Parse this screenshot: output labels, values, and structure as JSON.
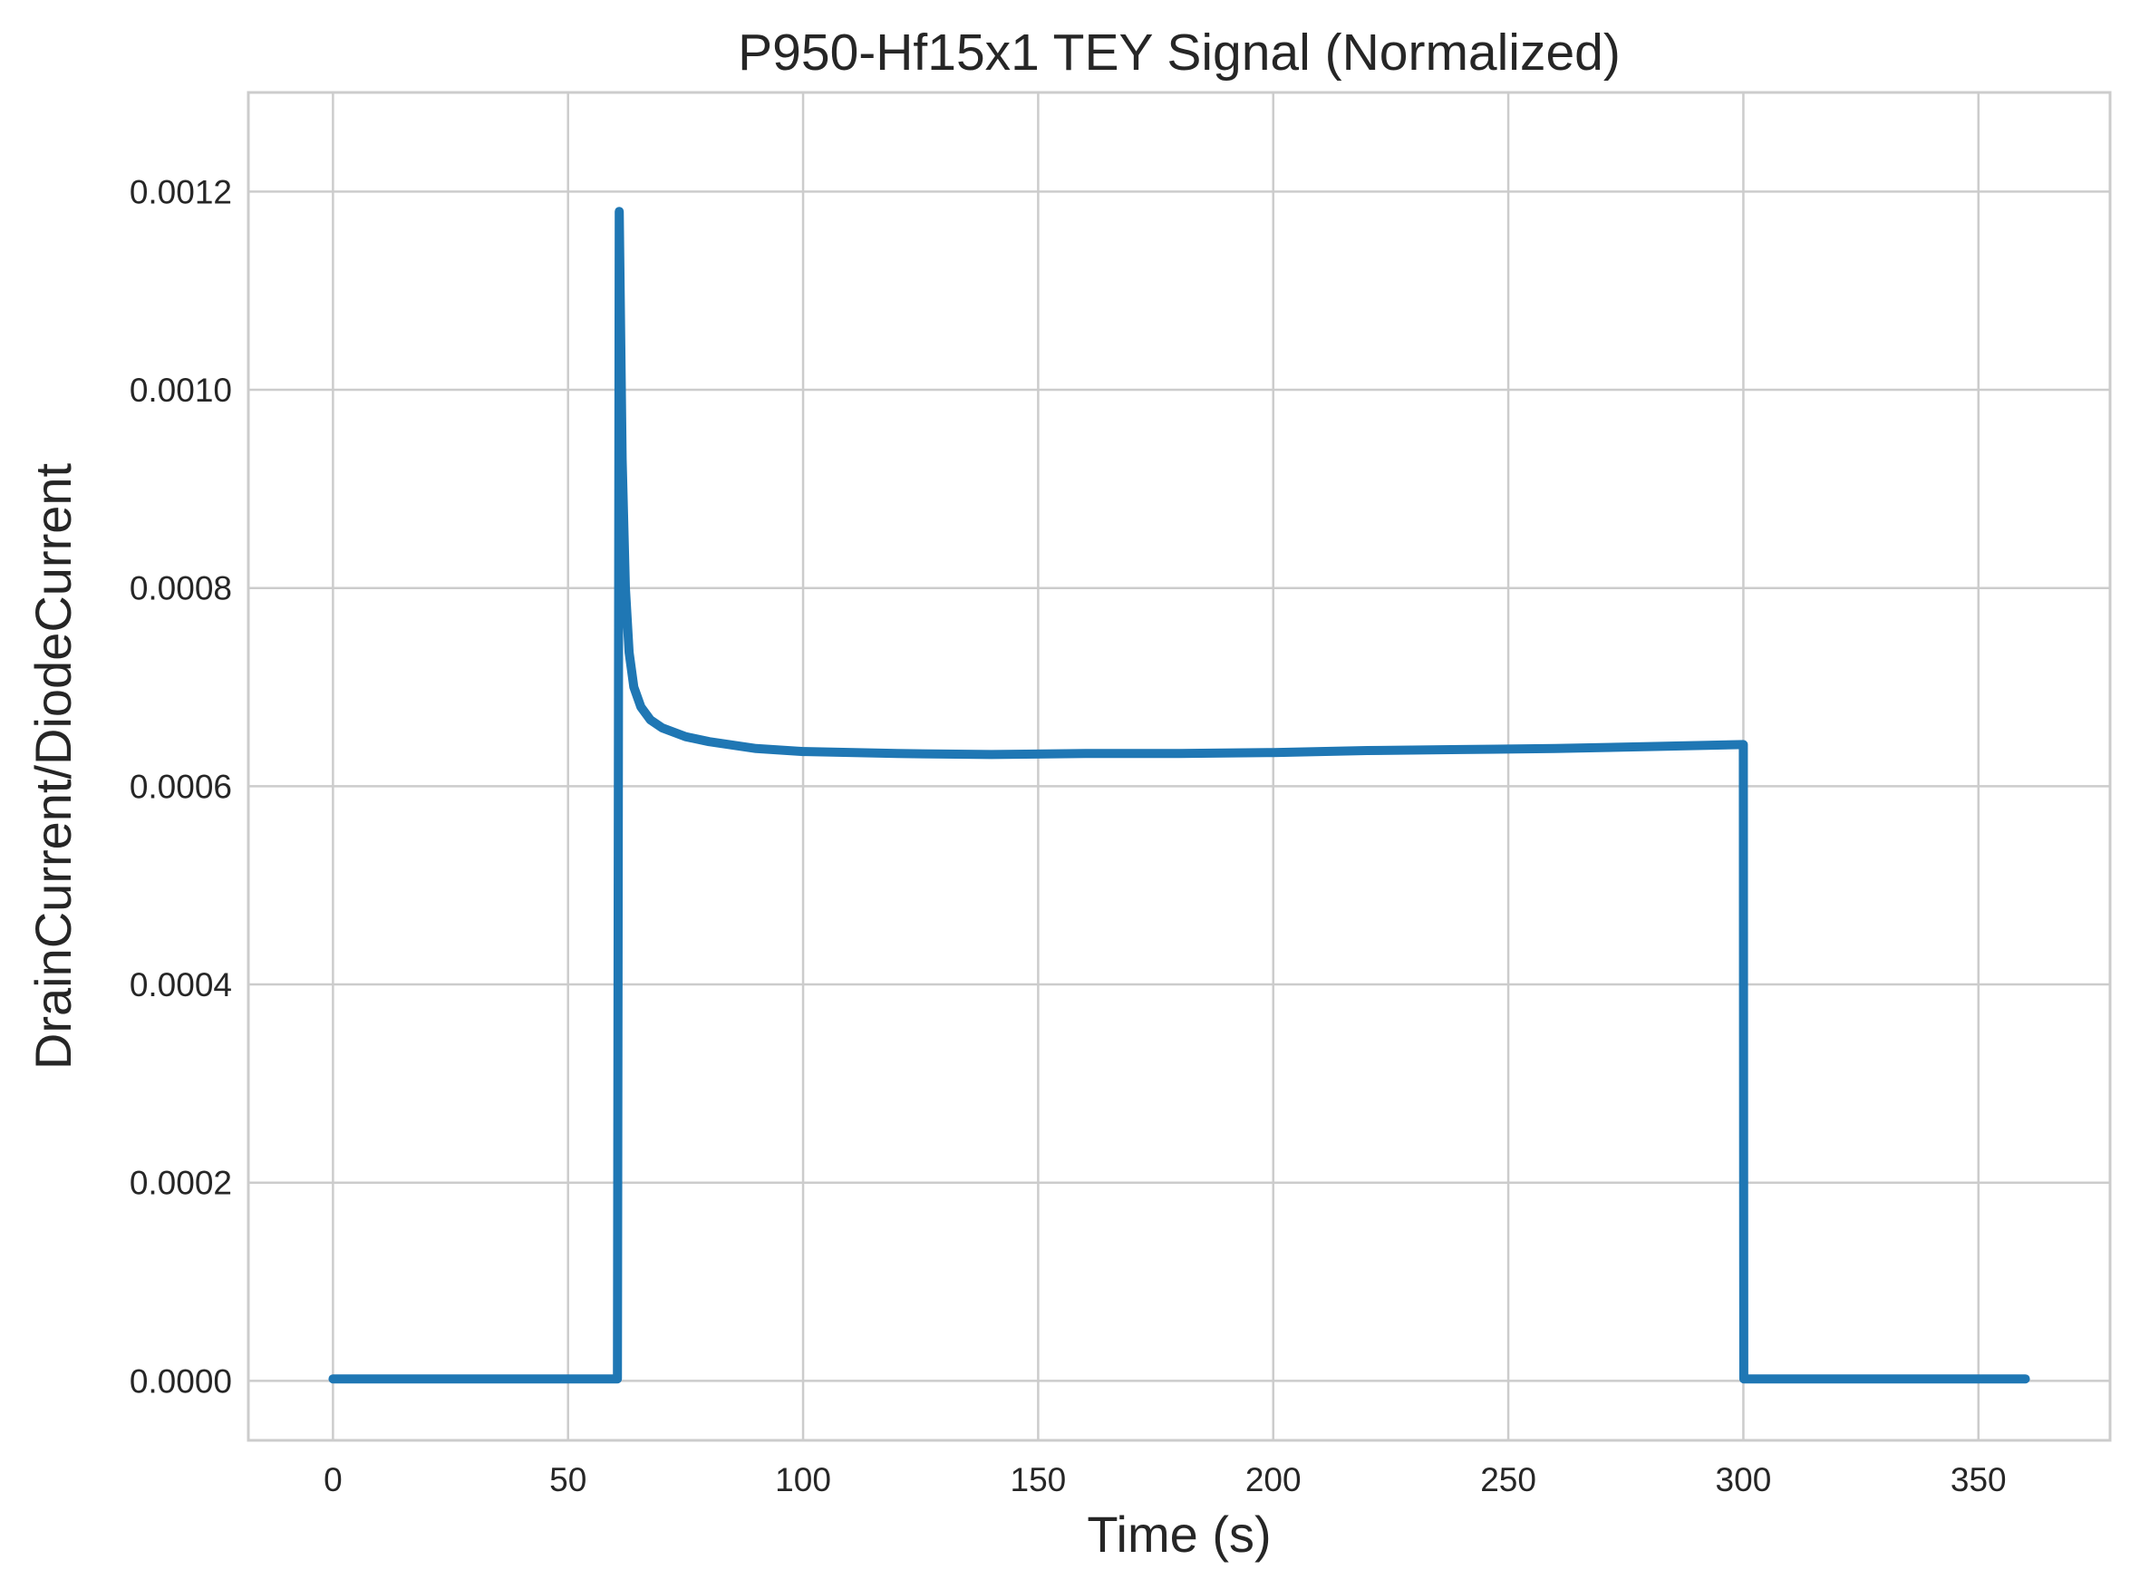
{
  "chart_data": {
    "type": "line",
    "title": "P950-Hf15x1 TEY Signal (Normalized)",
    "xlabel": "Time (s)",
    "ylabel": "DrainCurrent/DiodeCurrent",
    "xlim": [
      -18,
      378
    ],
    "ylim": [
      -6e-05,
      0.0013
    ],
    "xticks": [
      0,
      50,
      100,
      150,
      200,
      250,
      300,
      350
    ],
    "xtick_labels": [
      "0",
      "50",
      "100",
      "150",
      "200",
      "250",
      "300",
      "350"
    ],
    "yticks": [
      0.0,
      0.0002,
      0.0004,
      0.0006,
      0.0008,
      0.001,
      0.0012
    ],
    "ytick_labels": [
      "0.0000",
      "0.0002",
      "0.0004",
      "0.0006",
      "0.0008",
      "0.0010",
      "0.0012"
    ],
    "grid": true,
    "legend": "none",
    "series": [
      {
        "color": "#1f77b4",
        "x": [
          0,
          60.4,
          60.5,
          60.9,
          61.5,
          62.2,
          63.0,
          64.0,
          65.5,
          67.5,
          70,
          75,
          80,
          90,
          100,
          120,
          140,
          160,
          180,
          200,
          220,
          240,
          260,
          280,
          300,
          300.1,
          360
        ],
        "y": [
          2e-06,
          2e-06,
          2e-06,
          0.00118,
          0.00093,
          0.0008,
          0.000735,
          0.0007,
          0.00068,
          0.000667,
          0.000659,
          0.00065,
          0.000645,
          0.000638,
          0.000635,
          0.000633,
          0.000632,
          0.000633,
          0.000633,
          0.000634,
          0.000636,
          0.000637,
          0.000638,
          0.00064,
          0.000642,
          2e-06,
          2e-06
        ]
      }
    ]
  }
}
